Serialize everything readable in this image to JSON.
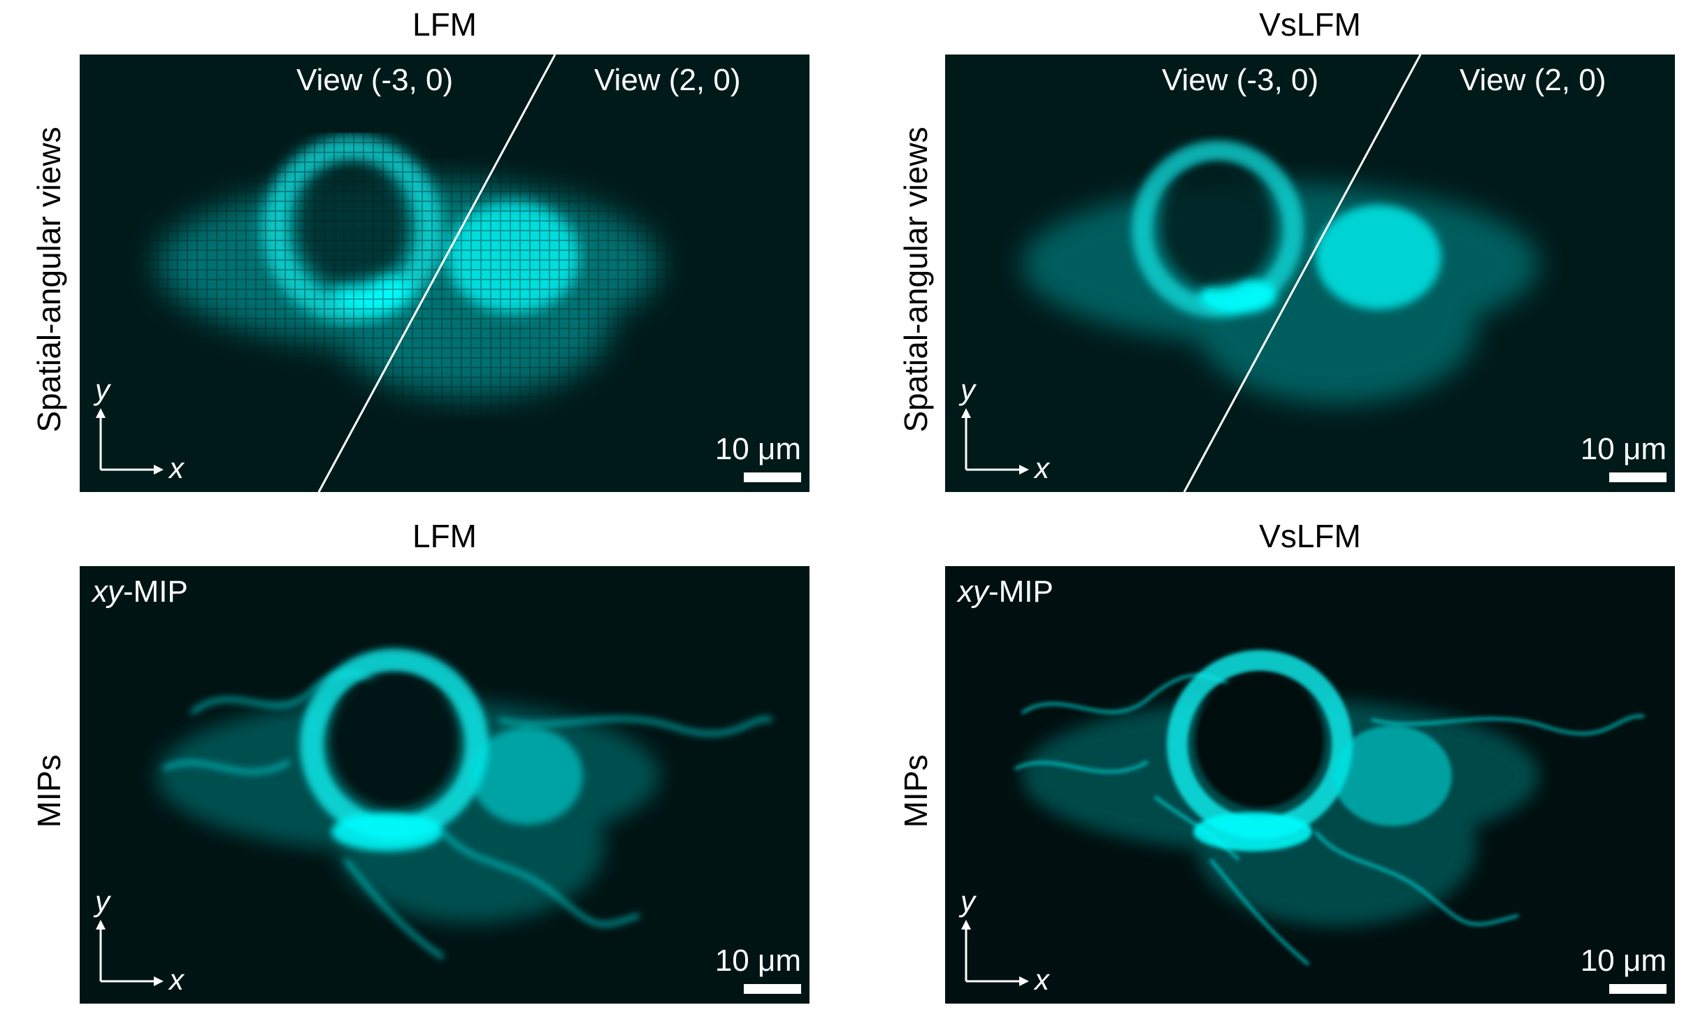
{
  "columns": [
    {
      "title": "LFM"
    },
    {
      "title": "VsLFM"
    }
  ],
  "rows": [
    {
      "label": "Spatial-angular views"
    },
    {
      "label": "MIPs"
    }
  ],
  "top_panels": [
    {
      "view_left": "View (-3, 0)",
      "view_right": "View (2, 0)",
      "scale": "10 μm"
    },
    {
      "view_left": "View (-3, 0)",
      "view_right": "View (2, 0)",
      "scale": "10 μm"
    }
  ],
  "bottom_panels": [
    {
      "mip_italic": "xy",
      "mip_rest": "-MIP",
      "scale": "10 μm"
    },
    {
      "mip_italic": "xy",
      "mip_rest": "-MIP",
      "scale": "10 μm"
    }
  ],
  "axes": {
    "x": "x",
    "y": "y"
  },
  "colors": {
    "panel_bg": "#001a1a",
    "fluorescence": "#00e5e5",
    "overlay": "#ffffff"
  }
}
